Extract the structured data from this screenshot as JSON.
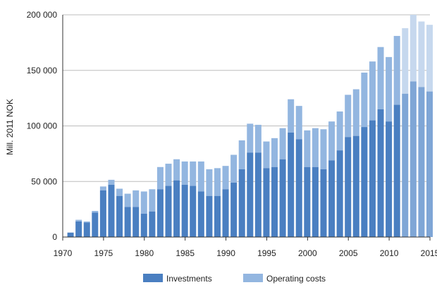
{
  "chart_data": {
    "type": "bar",
    "stacked": true,
    "ylabel": "Mill. 2011 NOK",
    "ylim": [
      0,
      200000
    ],
    "yticks": [
      0,
      50000,
      100000,
      150000,
      200000
    ],
    "ytick_labels": [
      "0",
      "50 000",
      "100 000",
      "150 000",
      "200 000"
    ],
    "xticks": [
      1970,
      1975,
      1980,
      1985,
      1990,
      1995,
      2000,
      2005,
      2010,
      2015
    ],
    "grid": "horizontal",
    "legend": "bottom",
    "colors": {
      "investments": "#4a7fc1",
      "operating": "#93b6e0",
      "investments_forecast": "#7fa6d6",
      "operating_forecast": "#c6d8ee",
      "grid": "#bdbdbd",
      "axis": "#333333"
    },
    "forecast_from": 2012,
    "categories": [
      1971,
      1972,
      1973,
      1974,
      1975,
      1976,
      1977,
      1978,
      1979,
      1980,
      1981,
      1982,
      1983,
      1984,
      1985,
      1986,
      1987,
      1988,
      1989,
      1990,
      1991,
      1992,
      1993,
      1994,
      1995,
      1996,
      1997,
      1998,
      1999,
      2000,
      2001,
      2002,
      2003,
      2004,
      2005,
      2006,
      2007,
      2008,
      2009,
      2010,
      2011,
      2012,
      2013,
      2014,
      2015
    ],
    "series": [
      {
        "name": "Investments",
        "values": [
          4000,
          14000,
          13000,
          22000,
          42000,
          47000,
          37000,
          27000,
          27000,
          21000,
          23000,
          43000,
          46000,
          51000,
          47000,
          46000,
          41000,
          37000,
          37000,
          43000,
          49000,
          61000,
          76000,
          76000,
          62000,
          63000,
          70000,
          94000,
          88000,
          63000,
          63000,
          61000,
          69000,
          78000,
          90000,
          91000,
          99000,
          105000,
          115000,
          104000,
          119000,
          129000,
          140000,
          135000,
          131000
        ]
      },
      {
        "name": "Operating costs",
        "values": [
          0,
          1500,
          1000,
          1500,
          3500,
          4500,
          6500,
          12000,
          15000,
          20000,
          20000,
          20000,
          20000,
          19000,
          21000,
          22000,
          27000,
          24000,
          25000,
          21000,
          25000,
          26000,
          26000,
          25000,
          24000,
          26000,
          28000,
          30000,
          30000,
          33000,
          35000,
          36000,
          35000,
          35000,
          38000,
          42000,
          49000,
          53000,
          56000,
          58000,
          62000,
          59000,
          60000,
          59000,
          60000
        ]
      }
    ]
  }
}
